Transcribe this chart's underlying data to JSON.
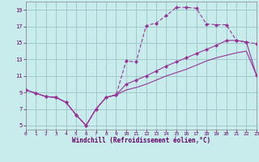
{
  "xlabel": "Windchill (Refroidissement éolien,°C)",
  "bg_color": "#c8ecec",
  "grid_color": "#a0c8c8",
  "line_color": "#993399",
  "xlim": [
    0,
    23
  ],
  "ylim": [
    4.5,
    20
  ],
  "xticks": [
    0,
    1,
    2,
    3,
    4,
    5,
    6,
    7,
    8,
    9,
    10,
    11,
    12,
    13,
    14,
    15,
    16,
    17,
    18,
    19,
    20,
    21,
    22,
    23
  ],
  "yticks": [
    5,
    7,
    9,
    11,
    13,
    15,
    17,
    19
  ],
  "s1_x": [
    0,
    1,
    2,
    3,
    4,
    5,
    6,
    7,
    8,
    9,
    10,
    11,
    12,
    13,
    14,
    15,
    16,
    17,
    18,
    19,
    20,
    21,
    22,
    23
  ],
  "s1_y": [
    9.3,
    8.9,
    8.5,
    8.4,
    7.8,
    6.3,
    5.0,
    7.0,
    8.4,
    8.7,
    12.8,
    12.7,
    17.1,
    17.4,
    18.3,
    19.3,
    19.3,
    19.2,
    17.3,
    17.2,
    17.2,
    15.3,
    15.1,
    14.9
  ],
  "s2_x": [
    0,
    1,
    2,
    3,
    4,
    5,
    6,
    7,
    8,
    9,
    10,
    11,
    12,
    13,
    14,
    15,
    16,
    17,
    18,
    19,
    20,
    21,
    22,
    23
  ],
  "s2_y": [
    9.3,
    8.9,
    8.5,
    8.4,
    7.8,
    6.3,
    5.0,
    7.0,
    8.4,
    8.7,
    10.0,
    10.5,
    11.0,
    11.6,
    12.2,
    12.7,
    13.2,
    13.7,
    14.2,
    14.7,
    15.3,
    15.3,
    15.1,
    11.1
  ],
  "s3_x": [
    0,
    1,
    2,
    3,
    4,
    5,
    6,
    7,
    8,
    9,
    10,
    11,
    12,
    13,
    14,
    15,
    16,
    17,
    18,
    19,
    20,
    21,
    22,
    23
  ],
  "s3_y": [
    9.3,
    8.9,
    8.5,
    8.4,
    7.8,
    6.3,
    5.0,
    7.0,
    8.4,
    8.7,
    9.3,
    9.6,
    10.0,
    10.5,
    11.0,
    11.4,
    11.8,
    12.3,
    12.8,
    13.2,
    13.5,
    13.8,
    14.0,
    11.1
  ]
}
